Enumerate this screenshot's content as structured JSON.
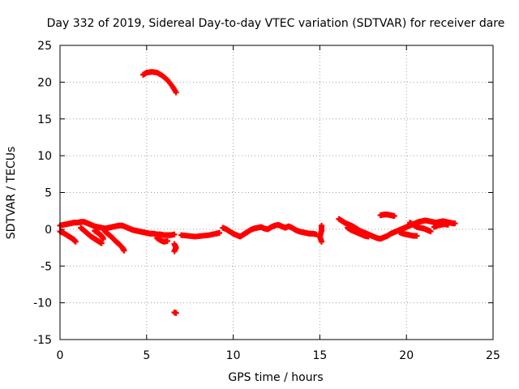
{
  "chart_data": {
    "type": "scatter",
    "title": "Day 332 of 2019, Sidereal Day-to-day VTEC variation (SDTVAR) for receiver dare",
    "xlabel": "GPS time / hours",
    "ylabel": "SDTVAR / TECUs",
    "xlim": [
      0,
      25
    ],
    "ylim": [
      -15,
      25
    ],
    "xticks": [
      0,
      5,
      10,
      15,
      20,
      25
    ],
    "yticks": [
      -15,
      -10,
      -5,
      0,
      5,
      10,
      15,
      20,
      25
    ],
    "grid": true,
    "marker_color": "#ff0000",
    "series": [
      {
        "name": "SDTVAR",
        "tracks": [
          [
            [
              4.8,
              21.0
            ],
            [
              5.0,
              21.3
            ],
            [
              5.3,
              21.4
            ],
            [
              5.6,
              21.3
            ],
            [
              5.9,
              20.9
            ],
            [
              6.2,
              20.3
            ],
            [
              6.5,
              19.4
            ],
            [
              6.7,
              18.6
            ]
          ],
          [
            [
              6.6,
              -11.3
            ],
            [
              6.7,
              -11.4
            ]
          ],
          [
            [
              0.0,
              0.5
            ],
            [
              0.2,
              0.6
            ],
            [
              0.4,
              0.7
            ],
            [
              0.6,
              0.8
            ],
            [
              0.8,
              0.9
            ],
            [
              1.0,
              0.9
            ],
            [
              1.2,
              1.0
            ],
            [
              1.4,
              1.0
            ],
            [
              1.6,
              0.8
            ],
            [
              1.8,
              0.6
            ],
            [
              2.0,
              0.4
            ],
            [
              2.2,
              0.3
            ],
            [
              2.4,
              0.2
            ],
            [
              2.6,
              0.1
            ],
            [
              2.8,
              0.2
            ],
            [
              3.0,
              0.3
            ],
            [
              3.2,
              0.4
            ],
            [
              3.4,
              0.5
            ],
            [
              3.6,
              0.5
            ],
            [
              3.8,
              0.3
            ],
            [
              4.0,
              0.1
            ],
            [
              4.2,
              -0.1
            ],
            [
              4.4,
              -0.2
            ],
            [
              4.6,
              -0.3
            ],
            [
              4.8,
              -0.4
            ],
            [
              5.0,
              -0.5
            ],
            [
              5.2,
              -0.6
            ],
            [
              5.4,
              -0.6
            ],
            [
              5.6,
              -0.7
            ],
            [
              5.8,
              -0.7
            ],
            [
              6.0,
              -0.8
            ],
            [
              6.2,
              -0.8
            ],
            [
              6.4,
              -0.8
            ],
            [
              6.6,
              -0.7
            ]
          ],
          [
            [
              0.0,
              -0.3
            ],
            [
              0.2,
              -0.5
            ],
            [
              0.4,
              -0.8
            ],
            [
              0.6,
              -1.1
            ],
            [
              0.8,
              -1.4
            ],
            [
              0.9,
              -1.7
            ]
          ],
          [
            [
              1.2,
              0.2
            ],
            [
              1.4,
              -0.2
            ],
            [
              1.6,
              -0.6
            ],
            [
              1.8,
              -1.0
            ],
            [
              2.0,
              -1.3
            ],
            [
              2.2,
              -1.6
            ],
            [
              2.4,
              -1.9
            ]
          ],
          [
            [
              2.6,
              -0.3
            ],
            [
              2.8,
              -0.7
            ],
            [
              3.0,
              -1.1
            ],
            [
              3.2,
              -1.6
            ],
            [
              3.4,
              -2.0
            ],
            [
              3.6,
              -2.5
            ],
            [
              3.7,
              -2.9
            ]
          ],
          [
            [
              2.0,
              -0.2
            ],
            [
              2.2,
              -0.5
            ],
            [
              2.4,
              -0.9
            ],
            [
              2.5,
              -1.3
            ]
          ],
          [
            [
              6.6,
              -2.0
            ],
            [
              6.7,
              -2.5
            ],
            [
              6.6,
              -3.0
            ]
          ],
          [
            [
              5.6,
              -1.2
            ],
            [
              5.8,
              -1.5
            ],
            [
              6.0,
              -1.7
            ],
            [
              6.2,
              -1.6
            ]
          ],
          [
            [
              7.0,
              -0.8
            ],
            [
              7.4,
              -0.9
            ],
            [
              7.8,
              -1.0
            ],
            [
              8.2,
              -0.9
            ],
            [
              8.6,
              -0.8
            ],
            [
              9.0,
              -0.6
            ],
            [
              9.2,
              -0.5
            ]
          ],
          [
            [
              9.4,
              0.2
            ],
            [
              9.6,
              0.0
            ],
            [
              9.8,
              -0.3
            ],
            [
              10.0,
              -0.6
            ],
            [
              10.2,
              -0.8
            ],
            [
              10.4,
              -1.0
            ],
            [
              10.6,
              -0.7
            ],
            [
              10.8,
              -0.4
            ],
            [
              11.0,
              -0.1
            ],
            [
              11.2,
              0.1
            ],
            [
              11.4,
              0.2
            ],
            [
              11.6,
              0.3
            ],
            [
              11.8,
              0.1
            ],
            [
              12.0,
              0.0
            ],
            [
              12.2,
              0.3
            ],
            [
              12.4,
              0.5
            ],
            [
              12.6,
              0.6
            ],
            [
              12.8,
              0.4
            ],
            [
              13.0,
              0.2
            ],
            [
              13.2,
              0.4
            ],
            [
              13.4,
              0.2
            ],
            [
              13.6,
              -0.1
            ],
            [
              13.8,
              -0.3
            ],
            [
              14.0,
              -0.4
            ],
            [
              14.2,
              -0.5
            ],
            [
              14.4,
              -0.6
            ],
            [
              14.6,
              -0.6
            ],
            [
              14.8,
              -0.7
            ]
          ],
          [
            [
              15.1,
              0.5
            ],
            [
              15.1,
              -0.2
            ],
            [
              15.0,
              -1.0
            ],
            [
              15.1,
              -1.7
            ]
          ],
          [
            [
              16.1,
              1.4
            ],
            [
              16.3,
              1.1
            ],
            [
              16.5,
              0.8
            ],
            [
              16.7,
              0.6
            ],
            [
              16.9,
              0.4
            ],
            [
              17.1,
              0.1
            ],
            [
              17.3,
              -0.2
            ],
            [
              17.5,
              -0.4
            ],
            [
              17.7,
              -0.6
            ],
            [
              17.9,
              -0.8
            ],
            [
              18.1,
              -1.0
            ],
            [
              18.3,
              -1.2
            ],
            [
              18.5,
              -1.3
            ],
            [
              18.7,
              -1.1
            ],
            [
              18.9,
              -0.9
            ],
            [
              19.1,
              -0.6
            ],
            [
              19.3,
              -0.4
            ],
            [
              19.5,
              -0.2
            ],
            [
              19.7,
              0.0
            ],
            [
              19.9,
              0.2
            ],
            [
              20.1,
              0.4
            ],
            [
              20.3,
              0.6
            ],
            [
              20.5,
              0.8
            ],
            [
              20.7,
              1.0
            ],
            [
              20.9,
              1.1
            ],
            [
              21.1,
              1.2
            ],
            [
              21.3,
              1.1
            ],
            [
              21.5,
              1.0
            ],
            [
              21.7,
              0.9
            ],
            [
              21.9,
              1.0
            ],
            [
              22.1,
              1.1
            ],
            [
              22.3,
              1.0
            ],
            [
              22.5,
              0.9
            ],
            [
              22.7,
              0.8
            ],
            [
              22.8,
              0.8
            ]
          ],
          [
            [
              16.6,
              0.2
            ],
            [
              16.8,
              -0.1
            ],
            [
              17.0,
              -0.3
            ],
            [
              17.2,
              -0.5
            ],
            [
              17.4,
              -0.7
            ],
            [
              17.6,
              -0.9
            ],
            [
              17.8,
              -1.0
            ]
          ],
          [
            [
              18.5,
              1.9
            ],
            [
              18.7,
              2.0
            ],
            [
              18.9,
              2.0
            ],
            [
              19.1,
              1.9
            ],
            [
              19.3,
              1.8
            ]
          ],
          [
            [
              19.6,
              -0.4
            ],
            [
              19.8,
              -0.6
            ],
            [
              20.0,
              -0.7
            ],
            [
              20.2,
              -0.8
            ],
            [
              20.4,
              -0.9
            ],
            [
              20.6,
              -0.9
            ]
          ],
          [
            [
              20.2,
              0.9
            ],
            [
              20.4,
              0.6
            ],
            [
              20.6,
              0.3
            ],
            [
              20.8,
              0.2
            ],
            [
              21.0,
              0.1
            ],
            [
              21.2,
              -0.1
            ],
            [
              21.4,
              -0.3
            ]
          ],
          [
            [
              21.6,
              0.3
            ],
            [
              21.8,
              0.5
            ],
            [
              22.0,
              0.6
            ],
            [
              22.2,
              0.7
            ],
            [
              22.4,
              0.6
            ]
          ]
        ]
      }
    ]
  }
}
